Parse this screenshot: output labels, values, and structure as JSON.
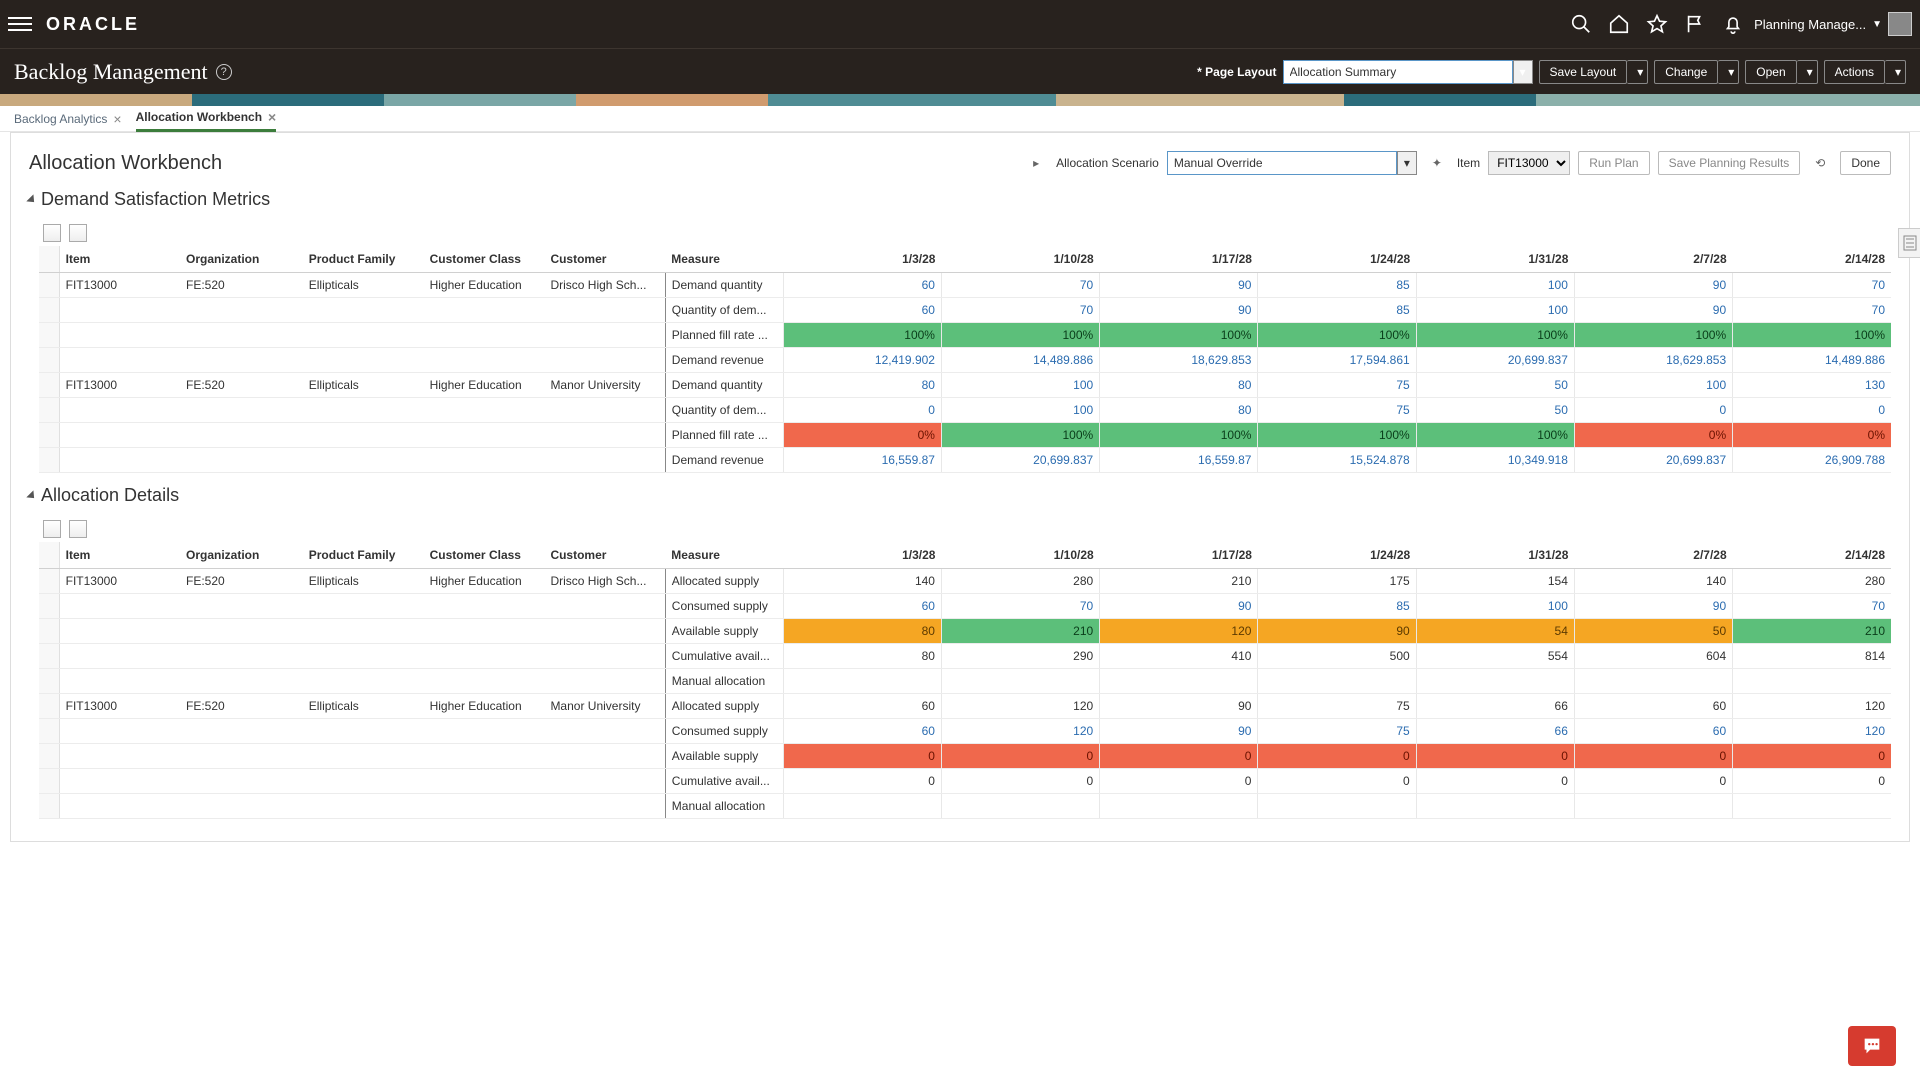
{
  "top": {
    "brand": "ORACLE",
    "user_label": "Planning Manage..."
  },
  "subbar": {
    "page_title": "Backlog Management",
    "page_layout_lbl": "Page Layout",
    "page_layout_val": "Allocation Summary",
    "save_layout": "Save Layout",
    "change": "Change",
    "open": "Open",
    "actions": "Actions"
  },
  "tabs": [
    {
      "label": "Backlog Analytics",
      "active": false
    },
    {
      "label": "Allocation Workbench",
      "active": true
    }
  ],
  "toolbar": {
    "title": "Allocation Workbench",
    "scenario_lbl": "Allocation Scenario",
    "scenario_val": "Manual Override",
    "item_lbl": "Item",
    "item_val": "FIT13000",
    "run_plan": "Run Plan",
    "save_results": "Save Planning Results",
    "done": "Done"
  },
  "sections": {
    "s1": "Demand Satisfaction Metrics",
    "s2": "Allocation Details"
  },
  "dates": [
    "1/3/28",
    "1/10/28",
    "1/17/28",
    "1/24/28",
    "1/31/28",
    "2/7/28",
    "2/14/28"
  ],
  "cols": {
    "item": "Item",
    "org": "Organization",
    "pf": "Product Family",
    "cc": "Customer Class",
    "cust": "Customer",
    "meas": "Measure"
  },
  "colors": {
    "green": "#5cbf7a",
    "red": "#f0684c",
    "orange": "#f5a623",
    "link": "#2b6cb0"
  },
  "dsm": [
    {
      "item": "FIT13000",
      "org": "FE:520",
      "pf": "Ellipticals",
      "cc": "Higher Education",
      "cust": "Drisco High Sch...",
      "rows": [
        {
          "m": "Demand quantity",
          "blue": true,
          "v": [
            "60",
            "70",
            "90",
            "85",
            "100",
            "90",
            "70"
          ]
        },
        {
          "m": "Quantity of dem...",
          "blue": true,
          "v": [
            "60",
            "70",
            "90",
            "85",
            "100",
            "90",
            "70"
          ]
        },
        {
          "m": "Planned fill rate ...",
          "blue": true,
          "v": [
            "100%",
            "100%",
            "100%",
            "100%",
            "100%",
            "100%",
            "100%"
          ],
          "bg": [
            "green",
            "green",
            "green",
            "green",
            "green",
            "green",
            "green"
          ]
        },
        {
          "m": "Demand revenue",
          "blue": true,
          "v": [
            "12,419.902",
            "14,489.886",
            "18,629.853",
            "17,594.861",
            "20,699.837",
            "18,629.853",
            "14,489.886"
          ]
        }
      ]
    },
    {
      "item": "FIT13000",
      "org": "FE:520",
      "pf": "Ellipticals",
      "cc": "Higher Education",
      "cust": "Manor University",
      "rows": [
        {
          "m": "Demand quantity",
          "blue": true,
          "v": [
            "80",
            "100",
            "80",
            "75",
            "50",
            "100",
            "130"
          ]
        },
        {
          "m": "Quantity of dem...",
          "blue": true,
          "v": [
            "0",
            "100",
            "80",
            "75",
            "50",
            "0",
            "0"
          ]
        },
        {
          "m": "Planned fill rate ...",
          "blue": true,
          "v": [
            "0%",
            "100%",
            "100%",
            "100%",
            "100%",
            "0%",
            "0%"
          ],
          "bg": [
            "red",
            "green",
            "green",
            "green",
            "green",
            "red",
            "red"
          ]
        },
        {
          "m": "Demand revenue",
          "blue": true,
          "v": [
            "16,559.87",
            "20,699.837",
            "16,559.87",
            "15,524.878",
            "10,349.918",
            "20,699.837",
            "26,909.788"
          ]
        }
      ]
    }
  ],
  "alloc": [
    {
      "item": "FIT13000",
      "org": "FE:520",
      "pf": "Ellipticals",
      "cc": "Higher Education",
      "cust": "Drisco High Sch...",
      "rows": [
        {
          "m": "Allocated supply",
          "blue": false,
          "v": [
            "140",
            "280",
            "210",
            "175",
            "154",
            "140",
            "280"
          ]
        },
        {
          "m": "Consumed supply",
          "blue": true,
          "v": [
            "60",
            "70",
            "90",
            "85",
            "100",
            "90",
            "70"
          ]
        },
        {
          "m": "Available supply",
          "blue": true,
          "v": [
            "80",
            "210",
            "120",
            "90",
            "54",
            "50",
            "210"
          ],
          "bg": [
            "orange",
            "green",
            "orange",
            "orange",
            "orange",
            "orange",
            "green"
          ]
        },
        {
          "m": "Cumulative avail...",
          "blue": false,
          "v": [
            "80",
            "290",
            "410",
            "500",
            "554",
            "604",
            "814"
          ]
        },
        {
          "m": "Manual allocation",
          "blue": false,
          "v": [
            "",
            "",
            "",
            "",
            "",
            "",
            ""
          ]
        }
      ]
    },
    {
      "item": "FIT13000",
      "org": "FE:520",
      "pf": "Ellipticals",
      "cc": "Higher Education",
      "cust": "Manor University",
      "rows": [
        {
          "m": "Allocated supply",
          "blue": false,
          "v": [
            "60",
            "120",
            "90",
            "75",
            "66",
            "60",
            "120"
          ]
        },
        {
          "m": "Consumed supply",
          "blue": true,
          "v": [
            "60",
            "120",
            "90",
            "75",
            "66",
            "60",
            "120"
          ]
        },
        {
          "m": "Available supply",
          "blue": true,
          "v": [
            "0",
            "0",
            "0",
            "0",
            "0",
            "0",
            "0"
          ],
          "bg": [
            "red",
            "red",
            "red",
            "red",
            "red",
            "red",
            "red"
          ]
        },
        {
          "m": "Cumulative avail...",
          "blue": false,
          "v": [
            "0",
            "0",
            "0",
            "0",
            "0",
            "0",
            "0"
          ]
        },
        {
          "m": "Manual allocation",
          "blue": false,
          "v": [
            "",
            "",
            "",
            "",
            "",
            "",
            ""
          ]
        }
      ]
    }
  ]
}
